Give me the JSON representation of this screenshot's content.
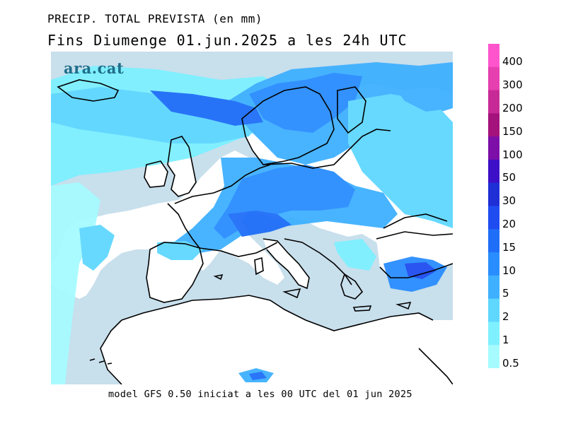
{
  "header": {
    "title": "PRECIP. TOTAL PREVISTA (en mm)",
    "subtitle": "Fins Diumenge 01.jun.2025 a les 24h UTC"
  },
  "brand": "ara.cat",
  "footer": {
    "caption": "model GFS 0.50 iniciat a les 00 UTC del 01 jun 2025"
  },
  "legend": {
    "items": [
      {
        "label": "400",
        "color": "#ff55cc"
      },
      {
        "label": "300",
        "color": "#e63fb0"
      },
      {
        "label": "200",
        "color": "#c72a96"
      },
      {
        "label": "150",
        "color": "#a4127c"
      },
      {
        "label": "100",
        "color": "#7d0ea8"
      },
      {
        "label": "50",
        "color": "#3d10c8"
      },
      {
        "label": "30",
        "color": "#1f2fd6"
      },
      {
        "label": "20",
        "color": "#1f4cf0"
      },
      {
        "label": "15",
        "color": "#1f6ef8"
      },
      {
        "label": "10",
        "color": "#2a8dff"
      },
      {
        "label": "5",
        "color": "#3fb0ff"
      },
      {
        "label": "2",
        "color": "#5fd7ff"
      },
      {
        "label": "1",
        "color": "#7ef0ff"
      },
      {
        "label": "0.5",
        "color": "#a6fbff"
      }
    ]
  },
  "map": {
    "land_color": "#ffffff",
    "sea_color": "#c8dfec",
    "coast_color": "#000000"
  }
}
